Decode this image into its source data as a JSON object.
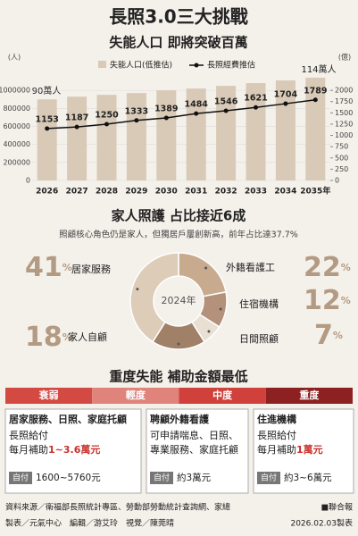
{
  "header": {
    "title": "長照3.0三大挑戰"
  },
  "chart_data": [
    {
      "type": "bar",
      "title": "失能人口  即將突破百萬",
      "y_unit": "(人)",
      "y2_unit": "(億)",
      "categories": [
        "2026",
        "2027",
        "2028",
        "2029",
        "2030",
        "2031",
        "2032",
        "2033",
        "2034",
        "2035年"
      ],
      "series": [
        {
          "name": "失能人口(低推估)",
          "color": "#d9cab7",
          "values": [
            900000,
            930000,
            950000,
            970000,
            1000000,
            1020000,
            1050000,
            1080000,
            1110000,
            1140000
          ]
        },
        {
          "name": "長照經費推估",
          "type": "line",
          "axis": "y2",
          "color": "#111111",
          "values": [
            1153,
            1187,
            1250,
            1333,
            1389,
            1484,
            1546,
            1621,
            1704,
            1789
          ]
        }
      ],
      "ylim": [
        0,
        1150000
      ],
      "yticks": [
        0,
        200000,
        400000,
        600000,
        800000,
        1000000
      ],
      "y2lim": [
        0,
        2300
      ],
      "y2ticks": [
        0,
        250,
        500,
        750,
        1000,
        1250,
        1500,
        1750,
        2000
      ],
      "annotations": [
        "90萬人",
        "114萬人"
      ]
    },
    {
      "type": "pie",
      "title": "家人照護  占比接近6成",
      "subtitle": "照顧核心角色仍是家人，但獨居戶屢創新高，前年占比達37.7%",
      "center_label": "2024年",
      "unit": "%",
      "categories": [
        "外籍看護工",
        "住宿機構",
        "日間照顧",
        "家人自顧",
        "居家服務"
      ],
      "values": [
        22,
        12,
        7,
        18,
        41
      ],
      "colors": [
        "#c8aa8e",
        "#b3917a",
        "#e9dfd3",
        "#a08167",
        "#ddccb8"
      ]
    }
  ],
  "section3": {
    "title": "重度失能  補助金額最低",
    "levels": [
      "衰弱",
      "輕度",
      "中度",
      "重度"
    ],
    "boxes": [
      {
        "title": "居家服務、日照、家庭托顧",
        "lines": [
          "長照給付",
          "每月補助"
        ],
        "highlight": "1~3.6萬元",
        "badge": "自付",
        "pay": "1600~5760元"
      },
      {
        "title": "聘顧外籍看護",
        "lines": [
          "可申請喘息、日照、",
          "專業服務、家庭托顧"
        ],
        "badge": "自付",
        "pay": "約3萬元"
      },
      {
        "title": "住進機構",
        "lines": [
          "長照給付",
          "每月補助"
        ],
        "highlight": "1萬元",
        "badge": "自付",
        "pay": "約3~6萬元"
      }
    ]
  },
  "footer": {
    "source": "資料來源／衛福部長照統計專區、勞動部勞動統計查詢網、家總",
    "brand": "■聯合報",
    "credits": "製表／元氣中心　編輯／游艾玲　視覺／陳莞晴",
    "date": "2026.02.03製表"
  }
}
